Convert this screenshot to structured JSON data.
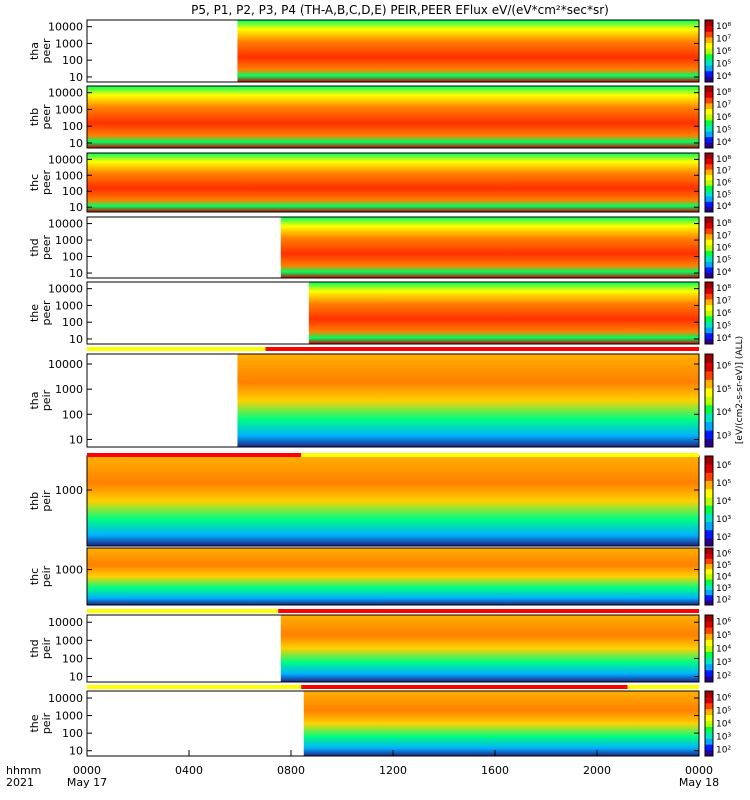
{
  "chart_data": {
    "type": "heatmap",
    "title": "P5, P1, P2, P3, P4 (TH-A,B,C,D,E) PEIR,PEER EFlux eV/(eV*cm²*sec*sr)",
    "x_axis": {
      "row1_label": "hhmm",
      "row2_label": "2021",
      "ticks": [
        "0000",
        "0400",
        "0800",
        "1200",
        "1600",
        "2000",
        "0000"
      ],
      "tick_hours": [
        0,
        4,
        8,
        12,
        16,
        20,
        24
      ],
      "date_labels": [
        "May 17",
        "May 18"
      ],
      "range_hours": [
        0,
        24
      ]
    },
    "colorbar_label": "[eV/(cm2-s-sr-eV)] (ALL)",
    "colormap": [
      "#2a0090",
      "#0018ff",
      "#00a8ff",
      "#00e8c0",
      "#00ff40",
      "#b8ff00",
      "#ffff00",
      "#ffb000",
      "#ff4000",
      "#d80000",
      "#a00000"
    ],
    "colors": {
      "quality_good": "#ffff00",
      "quality_flag": "#ff0000",
      "fill": "#000000",
      "no_data": "#ffffff"
    },
    "panels": [
      {
        "probe": "tha",
        "species": "peer",
        "yticks": [
          "10000",
          "1000",
          "100",
          "10"
        ],
        "cb_ticks": [
          "10⁸",
          "10⁷",
          "10⁶",
          "10⁵",
          "10⁴"
        ],
        "yrange": [
          5,
          25000
        ],
        "log": true,
        "data_start_hour": 5.9,
        "has_flag_bar": false
      },
      {
        "probe": "thb",
        "species": "peer",
        "yticks": [
          "10000",
          "1000",
          "100",
          "10"
        ],
        "cb_ticks": [
          "10⁸",
          "10⁷",
          "10⁶",
          "10⁵",
          "10⁴"
        ],
        "yrange": [
          5,
          25000
        ],
        "log": true,
        "data_start_hour": 0,
        "has_flag_bar": false
      },
      {
        "probe": "thc",
        "species": "peer",
        "yticks": [
          "10000",
          "1000",
          "100",
          "10"
        ],
        "cb_ticks": [
          "10⁸",
          "10⁷",
          "10⁶",
          "10⁵",
          "10⁴"
        ],
        "yrange": [
          5,
          25000
        ],
        "log": true,
        "data_start_hour": 0,
        "has_flag_bar": false
      },
      {
        "probe": "thd",
        "species": "peer",
        "yticks": [
          "10000",
          "1000",
          "100",
          "10"
        ],
        "cb_ticks": [
          "10⁸",
          "10⁷",
          "10⁶",
          "10⁵",
          "10⁴"
        ],
        "yrange": [
          5,
          25000
        ],
        "log": true,
        "data_start_hour": 7.6,
        "has_flag_bar": false
      },
      {
        "probe": "the",
        "species": "peer",
        "yticks": [
          "10000",
          "1000",
          "100",
          "10"
        ],
        "cb_ticks": [
          "10⁸",
          "10⁷",
          "10⁶",
          "10⁵",
          "10⁴"
        ],
        "yrange": [
          5,
          25000
        ],
        "log": true,
        "data_start_hour": 8.7,
        "has_flag_bar": false
      },
      {
        "probe": "tha",
        "species": "peir",
        "yticks": [
          "10000",
          "1000",
          "100",
          "10"
        ],
        "cb_ticks": [
          "10⁶",
          "10⁵",
          "10⁴",
          "10³"
        ],
        "yrange": [
          5,
          25000
        ],
        "log": true,
        "data_start_hour": 5.9,
        "has_flag_bar": true,
        "flag_segments": [
          {
            "from": 0,
            "to": 7.0,
            "flag": "good"
          },
          {
            "from": 7.0,
            "to": 24,
            "flag": "bad"
          }
        ]
      },
      {
        "probe": "thb",
        "species": "peir",
        "yticks": [
          "1000"
        ],
        "cb_ticks": [
          "10⁶",
          "10⁵",
          "10⁴",
          "10³",
          "10²"
        ],
        "yrange": [
          5,
          25000
        ],
        "log": true,
        "data_start_hour": 0,
        "has_flag_bar": true,
        "flag_segments": [
          {
            "from": 0,
            "to": 8.4,
            "flag": "bad"
          },
          {
            "from": 8.4,
            "to": 24,
            "flag": "good"
          }
        ]
      },
      {
        "probe": "thc",
        "species": "peir",
        "yticks": [
          "1000"
        ],
        "cb_ticks": [
          "10⁶",
          "10⁵",
          "10⁴",
          "10³",
          "10²"
        ],
        "yrange": [
          5,
          25000
        ],
        "log": true,
        "data_start_hour": 0,
        "has_flag_bar": false
      },
      {
        "probe": "thd",
        "species": "peir",
        "yticks": [
          "10000",
          "1000",
          "100",
          "10"
        ],
        "cb_ticks": [
          "10⁶",
          "10⁵",
          "10⁴",
          "10³",
          "10²"
        ],
        "yrange": [
          5,
          25000
        ],
        "log": true,
        "data_start_hour": 7.6,
        "has_flag_bar": true,
        "flag_segments": [
          {
            "from": 0,
            "to": 7.5,
            "flag": "good"
          },
          {
            "from": 7.5,
            "to": 24,
            "flag": "bad"
          }
        ]
      },
      {
        "probe": "the",
        "species": "peir",
        "yticks": [
          "10000",
          "1000",
          "100",
          "10"
        ],
        "cb_ticks": [
          "10⁶",
          "10⁵",
          "10⁴",
          "10³",
          "10²"
        ],
        "yrange": [
          5,
          25000
        ],
        "log": true,
        "data_start_hour": 8.5,
        "has_flag_bar": true,
        "flag_segments": [
          {
            "from": 0,
            "to": 8.4,
            "flag": "good"
          },
          {
            "from": 8.4,
            "to": 21.2,
            "flag": "bad"
          },
          {
            "from": 21.2,
            "to": 24,
            "flag": "good"
          }
        ]
      }
    ]
  }
}
